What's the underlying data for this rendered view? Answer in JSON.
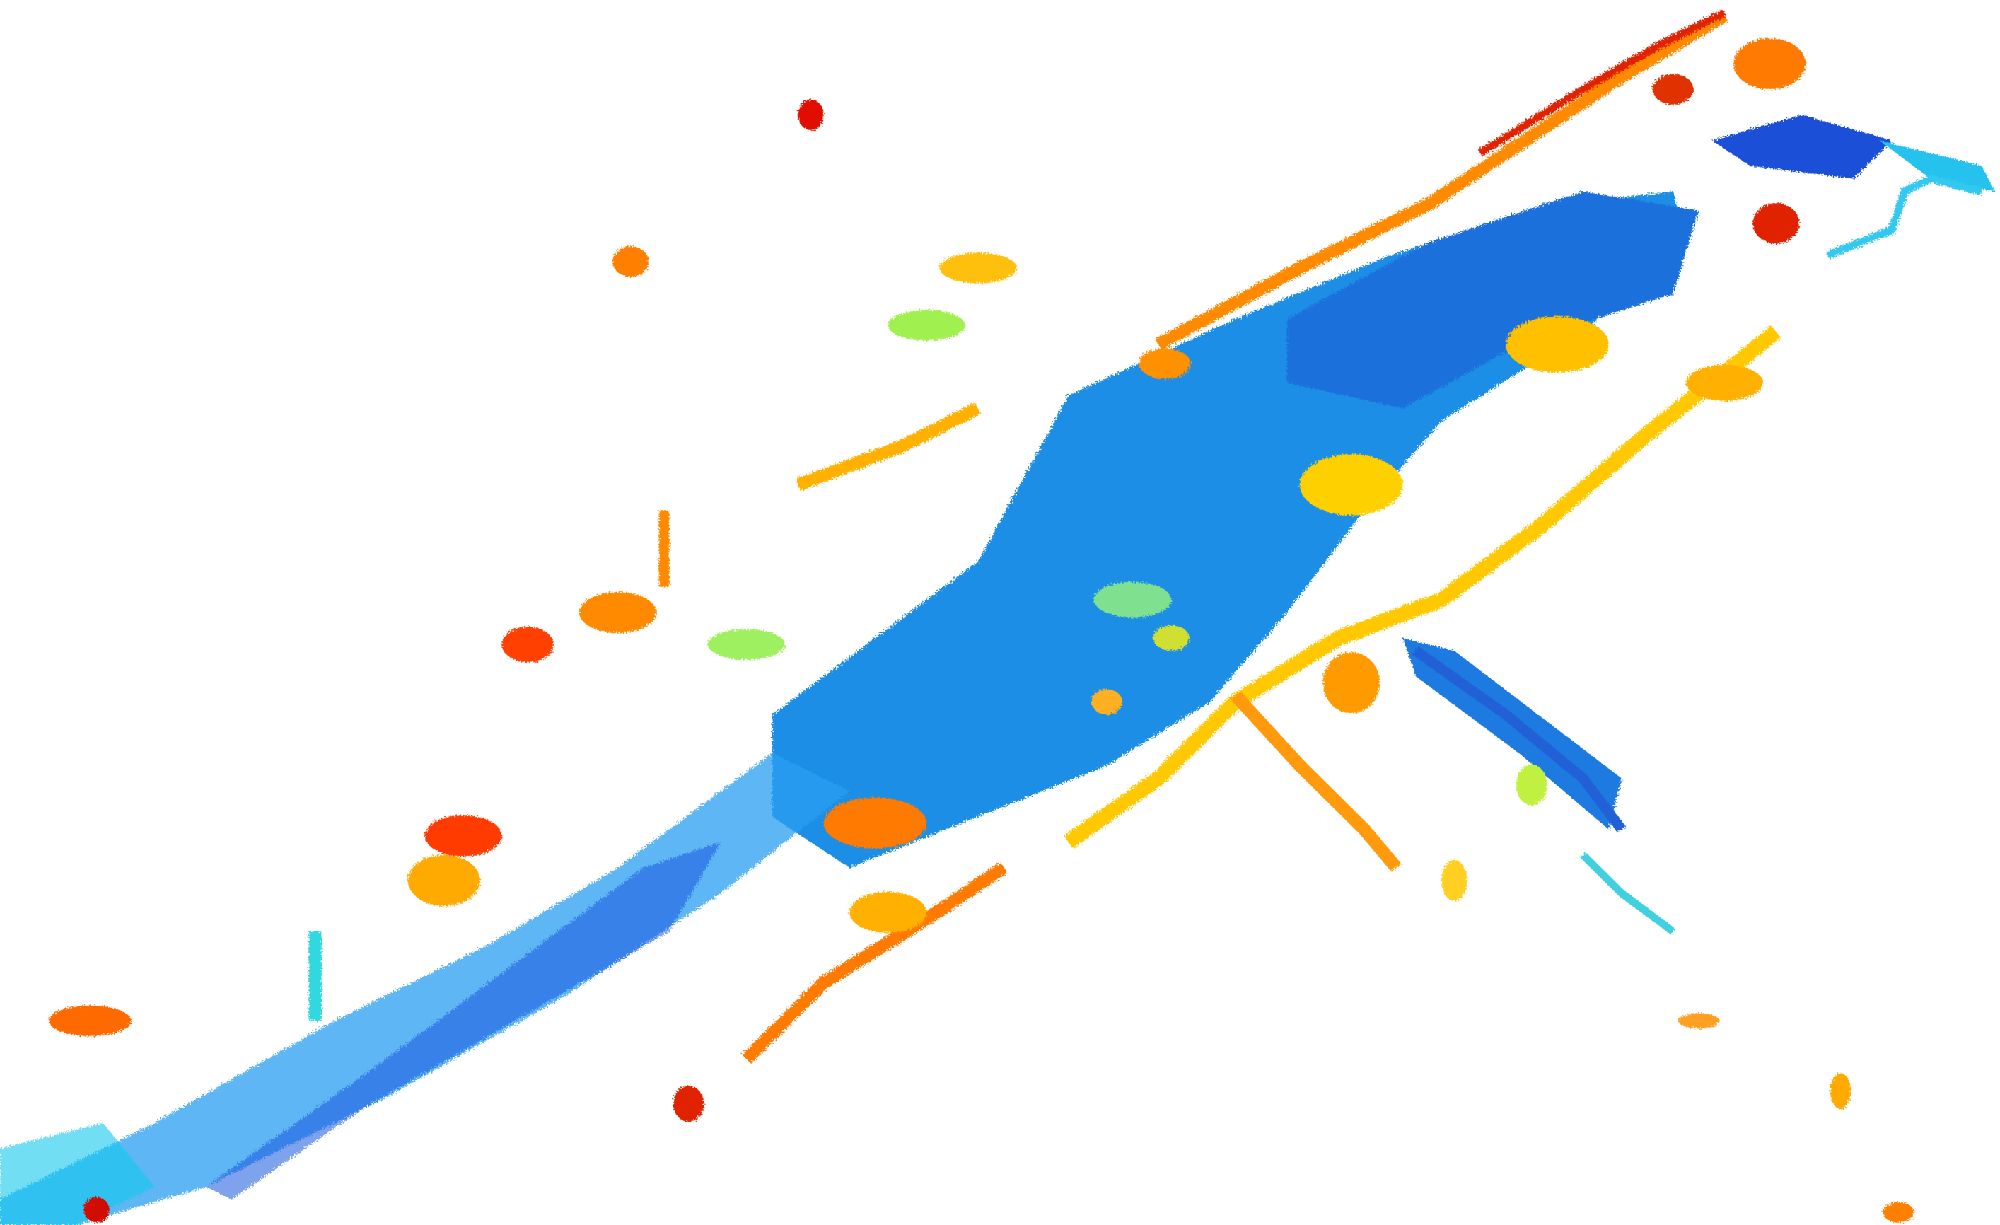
{
  "scene": {
    "kind": "lidar-point-cloud",
    "background": "#ffffff",
    "colormap": "jet",
    "color_encoding": "height",
    "colormap_stops": [
      "#0030c8",
      "#0090ff",
      "#00e0f0",
      "#a0f060",
      "#ffe000",
      "#ff9000",
      "#e01000"
    ]
  }
}
